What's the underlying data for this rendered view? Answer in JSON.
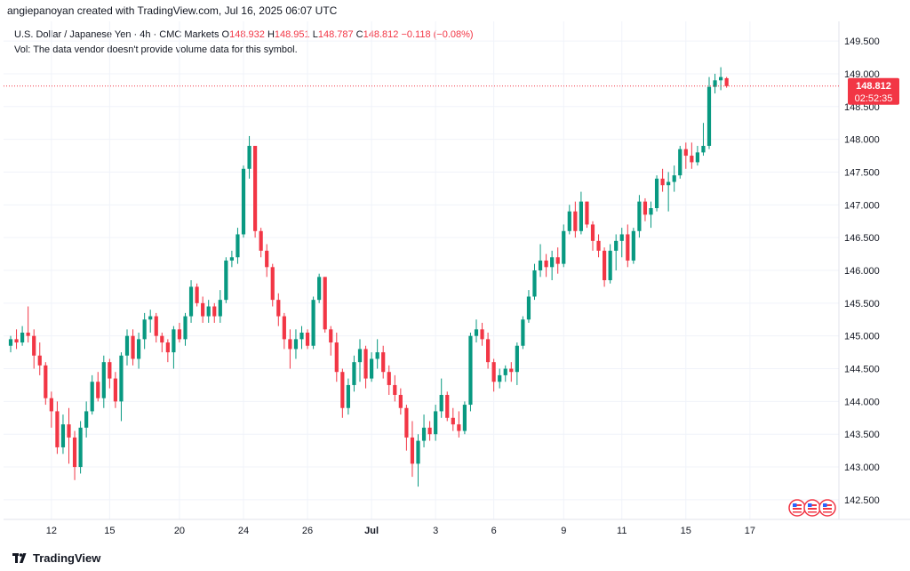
{
  "header": {
    "attribution": "angiepanoyan created with TradingView.com, Jul 16, 2025 06:07 UTC"
  },
  "legend": {
    "symbol": "U.S. Dollar / Japanese Yen · 4h · CMC Markets",
    "o_label": "O",
    "o_value": "148.932",
    "h_label": "H",
    "h_value": "148.951",
    "l_label": "L",
    "l_value": "148.787",
    "c_label": "C",
    "c_value": "148.812",
    "change": "−0.118 (−0.08%)",
    "vol_note": "Vol: The data vendor doesn't provide volume data for this symbol."
  },
  "footer": {
    "brand": "TradingView"
  },
  "price_tag": {
    "price": "148.812",
    "countdown": "02:52:35"
  },
  "colors": {
    "up": "#089981",
    "down": "#f23645",
    "grid": "#f0f3fa",
    "axis_text": "#131722"
  },
  "chart_data": {
    "type": "candlestick",
    "ylim": [
      142.2,
      149.8
    ],
    "y_ticks": [
      "142.500",
      "143.000",
      "143.500",
      "144.000",
      "144.500",
      "145.000",
      "145.500",
      "146.000",
      "146.500",
      "147.000",
      "147.500",
      "148.000",
      "148.500",
      "149.000",
      "149.500"
    ],
    "x_ticks": [
      {
        "label": "12",
        "index": 7
      },
      {
        "label": "15",
        "index": 17
      },
      {
        "label": "20",
        "index": 29
      },
      {
        "label": "24",
        "index": 40
      },
      {
        "label": "26",
        "index": 51
      },
      {
        "label": "Jul",
        "index": 62
      },
      {
        "label": "3",
        "index": 73
      },
      {
        "label": "6",
        "index": 83
      },
      {
        "label": "9",
        "index": 95
      },
      {
        "label": "11",
        "index": 105
      },
      {
        "label": "15",
        "index": 116
      },
      {
        "label": "17",
        "index": 127
      }
    ],
    "current_price": 148.812,
    "candles": [
      [
        144.85,
        145.0,
        144.75,
        144.95
      ],
      [
        144.95,
        145.1,
        144.8,
        144.9
      ],
      [
        144.9,
        145.15,
        144.85,
        145.05
      ],
      [
        145.05,
        145.45,
        144.9,
        145.0
      ],
      [
        145.0,
        145.1,
        144.5,
        144.7
      ],
      [
        144.7,
        144.9,
        144.4,
        144.55
      ],
      [
        144.55,
        144.6,
        143.95,
        144.05
      ],
      [
        144.05,
        144.15,
        143.6,
        143.85
      ],
      [
        143.85,
        144.0,
        143.2,
        143.3
      ],
      [
        143.3,
        143.8,
        143.2,
        143.65
      ],
      [
        143.65,
        143.9,
        143.05,
        143.45
      ],
      [
        143.45,
        143.55,
        142.8,
        143.0
      ],
      [
        143.0,
        143.7,
        142.9,
        143.6
      ],
      [
        143.6,
        144.0,
        143.45,
        143.85
      ],
      [
        143.85,
        144.4,
        143.8,
        144.3
      ],
      [
        144.3,
        144.45,
        144.0,
        144.05
      ],
      [
        144.05,
        144.7,
        143.9,
        144.6
      ],
      [
        144.6,
        144.65,
        144.2,
        144.35
      ],
      [
        144.35,
        144.45,
        143.9,
        144.0
      ],
      [
        144.0,
        144.75,
        143.7,
        144.7
      ],
      [
        144.7,
        145.1,
        144.55,
        145.0
      ],
      [
        145.0,
        145.1,
        144.55,
        144.65
      ],
      [
        144.65,
        145.05,
        144.5,
        144.95
      ],
      [
        144.95,
        145.35,
        144.8,
        145.25
      ],
      [
        145.25,
        145.4,
        145.05,
        145.3
      ],
      [
        145.3,
        145.35,
        144.9,
        145.0
      ],
      [
        145.0,
        145.05,
        144.75,
        144.9
      ],
      [
        144.9,
        144.95,
        144.6,
        144.75
      ],
      [
        144.75,
        145.15,
        144.5,
        145.1
      ],
      [
        145.1,
        145.2,
        144.9,
        144.95
      ],
      [
        144.95,
        145.35,
        144.85,
        145.3
      ],
      [
        145.3,
        145.85,
        145.2,
        145.75
      ],
      [
        145.75,
        145.8,
        145.45,
        145.5
      ],
      [
        145.5,
        145.6,
        145.2,
        145.3
      ],
      [
        145.3,
        145.55,
        145.2,
        145.45
      ],
      [
        145.45,
        145.5,
        145.2,
        145.3
      ],
      [
        145.3,
        145.7,
        145.2,
        145.55
      ],
      [
        145.55,
        146.2,
        145.5,
        146.15
      ],
      [
        146.15,
        146.3,
        146.05,
        146.2
      ],
      [
        146.2,
        146.65,
        146.1,
        146.55
      ],
      [
        146.55,
        147.6,
        146.5,
        147.55
      ],
      [
        147.55,
        148.05,
        147.4,
        147.9
      ],
      [
        147.9,
        147.9,
        146.5,
        146.6
      ],
      [
        146.6,
        146.65,
        146.2,
        146.3
      ],
      [
        146.3,
        146.4,
        145.9,
        146.05
      ],
      [
        146.05,
        146.1,
        145.45,
        145.55
      ],
      [
        145.55,
        145.65,
        145.15,
        145.3
      ],
      [
        145.3,
        145.35,
        144.8,
        144.95
      ],
      [
        144.95,
        145.1,
        144.5,
        144.8
      ],
      [
        144.8,
        145.1,
        144.65,
        144.95
      ],
      [
        144.95,
        145.15,
        144.8,
        145.05
      ],
      [
        145.05,
        145.1,
        144.8,
        144.85
      ],
      [
        144.85,
        145.6,
        144.8,
        145.55
      ],
      [
        145.55,
        145.95,
        145.5,
        145.9
      ],
      [
        145.9,
        145.9,
        145.05,
        145.1
      ],
      [
        145.1,
        145.15,
        144.7,
        144.9
      ],
      [
        144.9,
        145.05,
        144.3,
        144.45
      ],
      [
        144.45,
        144.5,
        143.75,
        143.9
      ],
      [
        143.9,
        144.35,
        143.8,
        144.25
      ],
      [
        144.25,
        144.7,
        144.15,
        144.6
      ],
      [
        144.6,
        144.95,
        144.3,
        144.8
      ],
      [
        144.8,
        144.85,
        144.2,
        144.35
      ],
      [
        144.35,
        144.75,
        144.3,
        144.65
      ],
      [
        144.65,
        144.95,
        144.5,
        144.75
      ],
      [
        144.75,
        144.85,
        144.35,
        144.45
      ],
      [
        144.45,
        144.55,
        144.1,
        144.25
      ],
      [
        144.25,
        144.4,
        144.0,
        144.1
      ],
      [
        144.1,
        144.2,
        143.8,
        143.9
      ],
      [
        143.9,
        143.95,
        143.25,
        143.45
      ],
      [
        143.45,
        143.7,
        142.85,
        143.05
      ],
      [
        143.05,
        143.5,
        142.7,
        143.4
      ],
      [
        143.4,
        143.8,
        143.3,
        143.6
      ],
      [
        143.6,
        143.7,
        143.4,
        143.5
      ],
      [
        143.5,
        143.95,
        143.4,
        143.85
      ],
      [
        143.85,
        144.35,
        143.75,
        144.1
      ],
      [
        144.1,
        144.15,
        143.7,
        143.75
      ],
      [
        143.75,
        143.9,
        143.55,
        143.65
      ],
      [
        143.65,
        143.85,
        143.45,
        143.55
      ],
      [
        143.55,
        144.0,
        143.5,
        143.95
      ],
      [
        143.95,
        145.05,
        143.85,
        145.0
      ],
      [
        145.0,
        145.25,
        144.9,
        145.1
      ],
      [
        145.1,
        145.2,
        144.85,
        144.95
      ],
      [
        144.95,
        145.05,
        144.5,
        144.6
      ],
      [
        144.6,
        144.65,
        144.15,
        144.3
      ],
      [
        144.3,
        144.5,
        144.2,
        144.4
      ],
      [
        144.4,
        144.55,
        144.3,
        144.5
      ],
      [
        144.5,
        144.6,
        144.3,
        144.45
      ],
      [
        144.45,
        144.9,
        144.25,
        144.85
      ],
      [
        144.85,
        145.3,
        144.8,
        145.25
      ],
      [
        145.25,
        145.7,
        145.2,
        145.6
      ],
      [
        145.6,
        146.1,
        145.55,
        146.0
      ],
      [
        146.0,
        146.4,
        145.9,
        146.15
      ],
      [
        146.15,
        146.25,
        145.9,
        146.05
      ],
      [
        146.05,
        146.3,
        145.85,
        146.2
      ],
      [
        146.2,
        146.35,
        145.95,
        146.1
      ],
      [
        146.1,
        146.7,
        146.05,
        146.6
      ],
      [
        146.6,
        147.0,
        146.55,
        146.9
      ],
      [
        146.9,
        147.05,
        146.5,
        146.6
      ],
      [
        146.6,
        147.2,
        146.55,
        147.05
      ],
      [
        147.05,
        147.05,
        146.65,
        146.7
      ],
      [
        146.7,
        146.75,
        146.3,
        146.45
      ],
      [
        146.45,
        146.55,
        146.2,
        146.3
      ],
      [
        146.3,
        146.35,
        145.75,
        145.85
      ],
      [
        145.85,
        146.4,
        145.8,
        146.3
      ],
      [
        146.3,
        146.55,
        146.0,
        146.45
      ],
      [
        146.45,
        146.65,
        146.2,
        146.55
      ],
      [
        146.55,
        146.7,
        146.05,
        146.15
      ],
      [
        146.15,
        146.65,
        146.1,
        146.6
      ],
      [
        146.6,
        147.15,
        146.5,
        147.05
      ],
      [
        147.05,
        147.1,
        146.75,
        146.85
      ],
      [
        146.85,
        147.05,
        146.65,
        146.95
      ],
      [
        146.95,
        147.45,
        146.9,
        147.4
      ],
      [
        147.4,
        147.55,
        147.2,
        147.3
      ],
      [
        147.3,
        147.5,
        146.9,
        147.35
      ],
      [
        147.35,
        147.6,
        147.2,
        147.45
      ],
      [
        147.45,
        147.9,
        147.4,
        147.85
      ],
      [
        147.85,
        147.95,
        147.55,
        147.75
      ],
      [
        147.75,
        147.95,
        147.55,
        147.65
      ],
      [
        147.65,
        147.9,
        147.6,
        147.8
      ],
      [
        147.8,
        148.25,
        147.75,
        147.9
      ],
      [
        147.9,
        148.95,
        147.85,
        148.8
      ],
      [
        148.8,
        149.0,
        148.7,
        148.9
      ],
      [
        148.9,
        149.1,
        148.75,
        148.95
      ],
      [
        148.932,
        148.951,
        148.787,
        148.812
      ]
    ]
  }
}
